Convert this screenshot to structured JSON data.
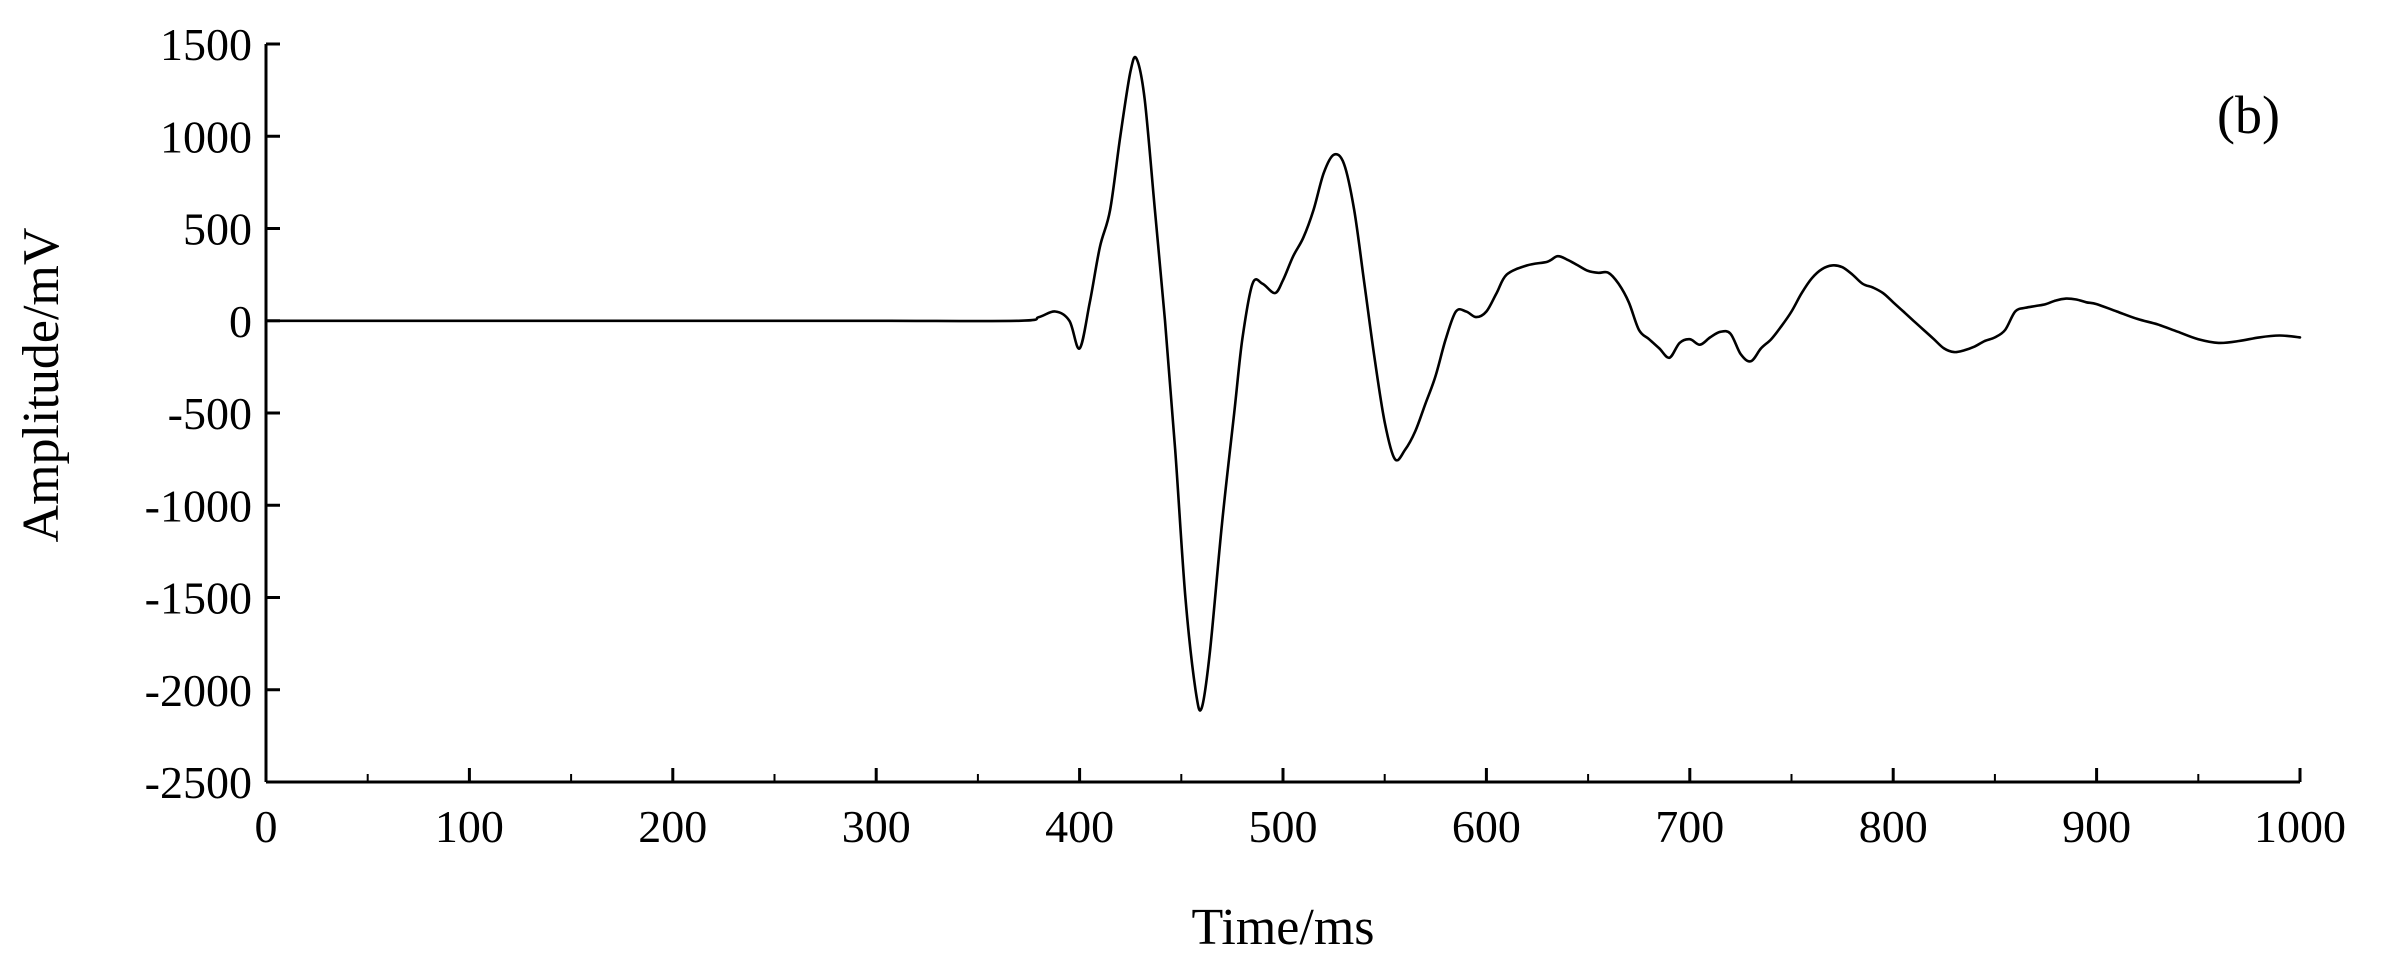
{
  "chart_data": {
    "type": "line",
    "title": "",
    "panel_label": "(b)",
    "xlabel": "Time/ms",
    "ylabel": "Amplitude/mV",
    "xlim": [
      0,
      1000
    ],
    "ylim": [
      -2500,
      1500
    ],
    "xticks": [
      0,
      100,
      200,
      300,
      400,
      500,
      600,
      700,
      800,
      900,
      1000
    ],
    "yticks": [
      1500,
      1000,
      500,
      0,
      -500,
      -1000,
      -1500,
      -2000,
      -2500
    ],
    "grid": false,
    "legend": "none",
    "line_color": "#000000",
    "series": [
      {
        "x": [
          0,
          100,
          200,
          300,
          370,
          380,
          388,
          395,
          400,
          405,
          410,
          415,
          420,
          425,
          428,
          432,
          437,
          442,
          447,
          452,
          457,
          460,
          464,
          470,
          476,
          480,
          485,
          490,
          496,
          500,
          505,
          510,
          515,
          520,
          525,
          530,
          535,
          540,
          545,
          550,
          555,
          560,
          565,
          570,
          575,
          580,
          585,
          590,
          595,
          600,
          605,
          610,
          620,
          630,
          635,
          640,
          645,
          650,
          655,
          660,
          665,
          670,
          675,
          680,
          685,
          690,
          695,
          700,
          705,
          710,
          715,
          720,
          725,
          730,
          735,
          740,
          745,
          750,
          755,
          760,
          765,
          770,
          775,
          780,
          785,
          790,
          795,
          800,
          805,
          810,
          815,
          820,
          825,
          830,
          835,
          840,
          845,
          850,
          855,
          860,
          865,
          870,
          875,
          880,
          885,
          890,
          895,
          900,
          910,
          920,
          930,
          940,
          950,
          960,
          970,
          980,
          990,
          1000
        ],
        "y": [
          0,
          0,
          0,
          0,
          0,
          20,
          50,
          0,
          -150,
          100,
          400,
          600,
          1000,
          1350,
          1420,
          1200,
          600,
          0,
          -700,
          -1500,
          -2000,
          -2100,
          -1800,
          -1100,
          -500,
          -100,
          200,
          200,
          150,
          220,
          350,
          450,
          600,
          800,
          900,
          850,
          600,
          200,
          -200,
          -550,
          -750,
          -700,
          -600,
          -450,
          -300,
          -100,
          50,
          50,
          20,
          50,
          150,
          250,
          300,
          320,
          350,
          330,
          300,
          270,
          260,
          260,
          200,
          100,
          -50,
          -100,
          -150,
          -200,
          -120,
          -100,
          -130,
          -90,
          -60,
          -70,
          -180,
          -220,
          -150,
          -100,
          -30,
          50,
          150,
          230,
          280,
          300,
          290,
          250,
          200,
          180,
          150,
          100,
          50,
          0,
          -50,
          -100,
          -150,
          -170,
          -160,
          -140,
          -110,
          -90,
          -50,
          50,
          70,
          80,
          90,
          110,
          120,
          115,
          100,
          90,
          50,
          10,
          -20,
          -60,
          -100,
          -120,
          -110,
          -90,
          -80,
          -90
        ]
      }
    ]
  }
}
